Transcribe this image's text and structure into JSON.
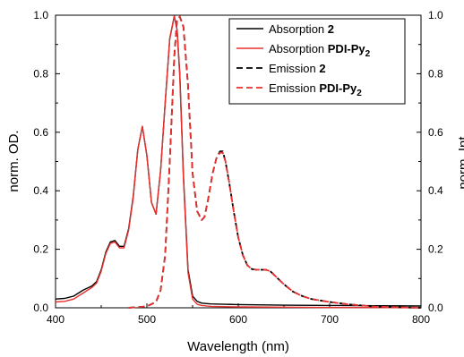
{
  "chart_data": {
    "type": "line",
    "xlabel": "Wavelength (nm)",
    "ylabel_left": "norm. OD.",
    "ylabel_right": "norm. Int.",
    "xlim": [
      400,
      800
    ],
    "ylim": [
      0,
      1.0
    ],
    "x_ticks": [
      "400",
      "500",
      "600",
      "700",
      "800"
    ],
    "y_ticks": [
      "0.0",
      "0.2",
      "0.4",
      "0.6",
      "0.8",
      "1.0"
    ],
    "legend_position": "top-right",
    "series": [
      {
        "name": "Absorption 2",
        "label_plain": "Absorption ",
        "label_bold": "2",
        "label_sub": "",
        "color": "#000000",
        "dash": "solid",
        "x": [
          400,
          410,
          420,
          430,
          440,
          445,
          450,
          455,
          460,
          465,
          470,
          475,
          480,
          485,
          490,
          495,
          500,
          505,
          510,
          515,
          520,
          525,
          530,
          533,
          536,
          540,
          545,
          550,
          555,
          560,
          570,
          600,
          650,
          700,
          750,
          800
        ],
        "y": [
          0.03,
          0.032,
          0.04,
          0.06,
          0.075,
          0.09,
          0.13,
          0.19,
          0.225,
          0.23,
          0.21,
          0.21,
          0.27,
          0.38,
          0.54,
          0.62,
          0.52,
          0.36,
          0.32,
          0.47,
          0.7,
          0.92,
          0.997,
          0.95,
          0.8,
          0.45,
          0.13,
          0.04,
          0.022,
          0.016,
          0.013,
          0.011,
          0.009,
          0.008,
          0.007,
          0.006
        ]
      },
      {
        "name": "Absorption PDI-Py2",
        "label_plain": "Absorption ",
        "label_bold": "PDI-Py",
        "label_sub": "2",
        "color": "#e8312f",
        "dash": "solid",
        "x": [
          400,
          410,
          420,
          430,
          440,
          445,
          450,
          455,
          460,
          465,
          470,
          475,
          480,
          485,
          490,
          495,
          500,
          505,
          510,
          515,
          520,
          525,
          530,
          533,
          536,
          540,
          545,
          550,
          555,
          560,
          570,
          600,
          650,
          700,
          750,
          800
        ],
        "y": [
          0.02,
          0.022,
          0.03,
          0.05,
          0.07,
          0.085,
          0.125,
          0.185,
          0.22,
          0.225,
          0.205,
          0.205,
          0.265,
          0.375,
          0.54,
          0.62,
          0.52,
          0.36,
          0.32,
          0.47,
          0.7,
          0.92,
          0.997,
          0.95,
          0.79,
          0.44,
          0.12,
          0.03,
          0.012,
          0.008,
          0.005,
          0.003,
          0.002,
          0.001,
          0.001,
          0.0
        ]
      },
      {
        "name": "Emission 2",
        "label_plain": "Emission ",
        "label_bold": "2",
        "label_sub": "",
        "color": "#000000",
        "dash": "dashed",
        "x": [
          480,
          500,
          510,
          515,
          520,
          525,
          530,
          533,
          536,
          540,
          545,
          550,
          555,
          560,
          563,
          567,
          572,
          576,
          580,
          583,
          586,
          590,
          595,
          600,
          605,
          610,
          615,
          620,
          625,
          630,
          635,
          640,
          650,
          660,
          670,
          680,
          700,
          720,
          750,
          800
        ],
        "y": [
          0.0,
          0.005,
          0.02,
          0.06,
          0.18,
          0.5,
          0.86,
          0.985,
          0.995,
          0.96,
          0.76,
          0.46,
          0.33,
          0.3,
          0.31,
          0.37,
          0.46,
          0.51,
          0.535,
          0.535,
          0.5,
          0.43,
          0.33,
          0.24,
          0.18,
          0.145,
          0.132,
          0.13,
          0.13,
          0.13,
          0.125,
          0.11,
          0.08,
          0.055,
          0.04,
          0.03,
          0.02,
          0.012,
          0.004,
          0.0
        ]
      },
      {
        "name": "Emission PDI-Py2",
        "label_plain": "Emission ",
        "label_bold": "PDI-Py",
        "label_sub": "2",
        "color": "#e8312f",
        "dash": "dashed",
        "x": [
          480,
          500,
          510,
          515,
          520,
          525,
          530,
          533,
          536,
          540,
          545,
          550,
          555,
          560,
          563,
          567,
          572,
          576,
          580,
          583,
          586,
          590,
          595,
          600,
          605,
          610,
          615,
          620,
          625,
          630,
          635,
          640,
          650,
          660,
          670,
          680,
          700,
          720,
          750,
          800
        ],
        "y": [
          0.0,
          0.005,
          0.02,
          0.06,
          0.18,
          0.5,
          0.86,
          0.985,
          0.995,
          0.96,
          0.76,
          0.46,
          0.33,
          0.3,
          0.31,
          0.37,
          0.46,
          0.51,
          0.53,
          0.53,
          0.5,
          0.43,
          0.33,
          0.24,
          0.18,
          0.145,
          0.132,
          0.13,
          0.13,
          0.13,
          0.125,
          0.11,
          0.08,
          0.055,
          0.04,
          0.03,
          0.02,
          0.012,
          0.004,
          0.0
        ]
      }
    ]
  }
}
